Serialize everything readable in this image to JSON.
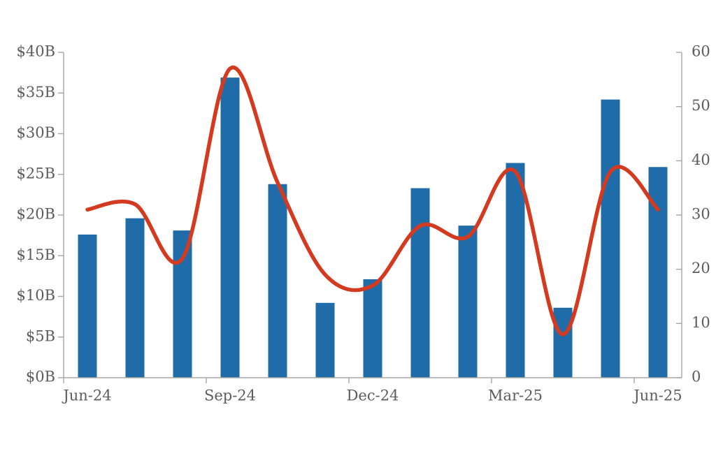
{
  "chart_data": {
    "type": "combo",
    "title": "",
    "legend": "none",
    "grid": false,
    "background": "#FFFFFF",
    "text_color": "#5C5C5C",
    "axis_color": "#A6A6A6",
    "categories": [
      "Jun-24",
      "Jul-24",
      "Aug-24",
      "Sep-24",
      "Oct-24",
      "Nov-24",
      "Dec-24",
      "Jan-25",
      "Feb-25",
      "Mar-25",
      "Apr-25",
      "May-25",
      "Jun-25"
    ],
    "x_tick_label_indices": [
      0,
      3,
      6,
      9,
      12
    ],
    "x_tick_labels_shown": [
      "Jun-24",
      "Sep-24",
      "Dec-24",
      "Mar-25",
      "Jun-25"
    ],
    "x_boundary_tick_indices": [
      0,
      3,
      6,
      9,
      12
    ],
    "series": [
      {
        "name": "monthly-value-bars",
        "type": "bar",
        "axis": "left",
        "color": "#1F6CA8",
        "values": [
          17.6,
          19.6,
          18.1,
          36.9,
          23.8,
          9.2,
          12.1,
          23.3,
          18.7,
          26.4,
          8.6,
          34.2,
          25.9
        ]
      },
      {
        "name": "monthly-count-line",
        "type": "line",
        "axis": "right",
        "color": "#D43A20",
        "values": [
          31,
          32,
          22,
          57,
          36,
          19,
          17,
          28,
          26,
          38,
          8,
          38,
          31
        ]
      }
    ],
    "left_axis": {
      "min": 0,
      "max": 40,
      "step": 5,
      "tick_labels": [
        "$0B",
        "$5B",
        "$10B",
        "$15B",
        "$20B",
        "$25B",
        "$30B",
        "$35B",
        "$40B"
      ]
    },
    "right_axis": {
      "min": 0,
      "max": 60,
      "step": 10,
      "tick_labels": [
        "0",
        "10",
        "20",
        "30",
        "40",
        "50",
        "60"
      ]
    }
  }
}
